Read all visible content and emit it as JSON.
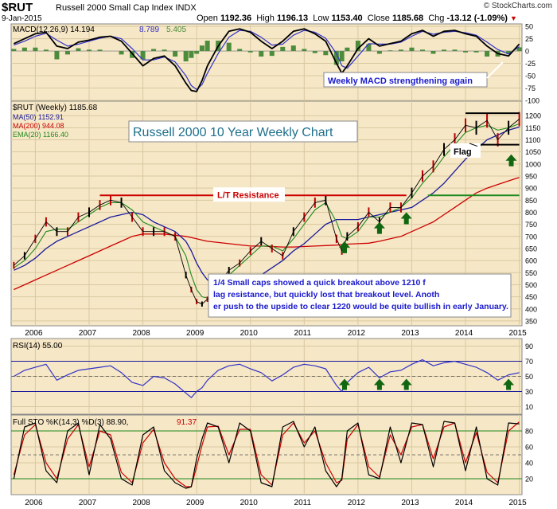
{
  "header": {
    "symbol": "$RUT",
    "description": "Russell 2000 Small Cap Index INDX",
    "date": "9-Jan-2015",
    "copyright": "© StockCharts.com",
    "open_label": "Open",
    "open": "1192.36",
    "high_label": "High",
    "high": "1196.13",
    "low_label": "Low",
    "low": "1153.40",
    "close_label": "Close",
    "close": "1185.68",
    "chg_label": "Chg",
    "chg": "-13.12 (-1.09%)",
    "chg_symbol": "▼"
  },
  "colors": {
    "panel_bg": "#f6e7c6",
    "price": "#000000",
    "ma50": "#1a1a9c",
    "ma200": "#cc0000",
    "ema20": "#1f8a1f",
    "macd_signal": "#3232c8",
    "histogram": "#4c8c3c",
    "resistance": "#cc0000",
    "support": "#1f8a1f",
    "arrow": "#116611",
    "annotation_text": "#1a1acc"
  },
  "chart_data": [
    {
      "type": "line",
      "panel": "MACD",
      "legend": {
        "label": "MACD(12,26,9)",
        "v1": "14.194",
        "v2": "8.789",
        "v3": "5.405"
      },
      "y_ticks": [
        "50",
        "25",
        "0",
        "-25",
        "-50",
        "-75",
        "-100"
      ],
      "ylim": [
        -100,
        55
      ],
      "x": [
        2005.6,
        2005.8,
        2006.0,
        2006.2,
        2006.4,
        2006.6,
        2006.8,
        2007.0,
        2007.2,
        2007.4,
        2007.6,
        2007.8,
        2008.0,
        2008.2,
        2008.4,
        2008.6,
        2008.8,
        2008.9,
        2009.0,
        2009.1,
        2009.2,
        2009.4,
        2009.6,
        2009.8,
        2010.0,
        2010.2,
        2010.4,
        2010.6,
        2010.8,
        2011.0,
        2011.2,
        2011.4,
        2011.6,
        2011.7,
        2011.8,
        2012.0,
        2012.2,
        2012.4,
        2012.6,
        2012.8,
        2013.0,
        2013.2,
        2013.4,
        2013.6,
        2013.8,
        2014.0,
        2014.2,
        2014.4,
        2014.6,
        2014.8,
        2015.0
      ],
      "series": [
        {
          "role": "macd",
          "values": [
            15,
            25,
            35,
            38,
            10,
            5,
            18,
            22,
            28,
            30,
            20,
            -5,
            -30,
            -15,
            -10,
            -30,
            -65,
            -80,
            -82,
            -60,
            -30,
            10,
            40,
            45,
            38,
            20,
            5,
            20,
            40,
            45,
            35,
            20,
            -25,
            -45,
            -30,
            5,
            25,
            10,
            15,
            20,
            35,
            42,
            30,
            40,
            42,
            35,
            30,
            10,
            -5,
            -10,
            14.194
          ]
        },
        {
          "role": "signal",
          "values": [
            12,
            20,
            30,
            36,
            22,
            10,
            14,
            20,
            26,
            30,
            25,
            5,
            -18,
            -18,
            -12,
            -22,
            -50,
            -70,
            -78,
            -68,
            -45,
            -5,
            28,
            42,
            40,
            28,
            12,
            14,
            32,
            42,
            38,
            26,
            -5,
            -30,
            -35,
            -10,
            15,
            14,
            14,
            18,
            30,
            40,
            34,
            38,
            40,
            37,
            32,
            18,
            3,
            -6,
            8.789
          ]
        }
      ],
      "annotations": [
        "Weekly MACD strengthening again"
      ]
    },
    {
      "type": "line",
      "panel": "Price",
      "title": "Russell 2000 10 Year Weekly Chart",
      "legend": [
        {
          "label": "$RUT (Weekly)",
          "value": "1185.68"
        },
        {
          "label": "MA(50)",
          "value": "1152.91"
        },
        {
          "label": "MA(200)",
          "value": "944.08"
        },
        {
          "label": "EMA(20)",
          "value": "1166.40"
        }
      ],
      "y_ticks": [
        "1200",
        "1150",
        "1100",
        "1050",
        "1000",
        "950",
        "900",
        "850",
        "800",
        "750",
        "700",
        "650",
        "600",
        "550",
        "500",
        "450",
        "400",
        "350"
      ],
      "ylim": [
        330,
        1260
      ],
      "x": [
        2005.6,
        2005.8,
        2006.0,
        2006.2,
        2006.4,
        2006.6,
        2006.8,
        2007.0,
        2007.2,
        2007.4,
        2007.6,
        2007.8,
        2008.0,
        2008.2,
        2008.4,
        2008.6,
        2008.8,
        2008.9,
        2009.0,
        2009.1,
        2009.2,
        2009.4,
        2009.6,
        2009.8,
        2010.0,
        2010.2,
        2010.4,
        2010.6,
        2010.8,
        2011.0,
        2011.2,
        2011.4,
        2011.6,
        2011.7,
        2011.8,
        2012.0,
        2012.2,
        2012.4,
        2012.6,
        2012.8,
        2013.0,
        2013.2,
        2013.4,
        2013.6,
        2013.8,
        2014.0,
        2014.2,
        2014.4,
        2014.6,
        2014.8,
        2015.0
      ],
      "series": [
        {
          "name": "$RUT",
          "values": [
            580,
            620,
            690,
            760,
            720,
            720,
            780,
            800,
            830,
            850,
            840,
            780,
            720,
            720,
            720,
            700,
            540,
            480,
            430,
            420,
            440,
            500,
            560,
            590,
            640,
            680,
            650,
            620,
            720,
            780,
            840,
            850,
            690,
            640,
            700,
            740,
            800,
            760,
            820,
            820,
            880,
            950,
            990,
            1060,
            1100,
            1160,
            1150,
            1180,
            1100,
            1150,
            1185.68
          ]
        },
        {
          "name": "MA(50)",
          "values": [
            560,
            580,
            610,
            650,
            680,
            700,
            720,
            740,
            760,
            780,
            790,
            800,
            790,
            760,
            740,
            720,
            680,
            640,
            590,
            550,
            520,
            500,
            480,
            490,
            510,
            540,
            570,
            600,
            640,
            670,
            710,
            750,
            770,
            770,
            770,
            770,
            780,
            790,
            800,
            810,
            820,
            850,
            880,
            920,
            970,
            1020,
            1060,
            1100,
            1120,
            1140,
            1152.91
          ]
        },
        {
          "name": "MA(200)",
          "values": [
            480,
            500,
            520,
            540,
            560,
            580,
            600,
            620,
            640,
            660,
            680,
            700,
            710,
            710,
            710,
            705,
            700,
            695,
            690,
            685,
            680,
            675,
            670,
            665,
            660,
            660,
            658,
            656,
            656,
            658,
            660,
            662,
            664,
            666,
            668,
            670,
            672,
            680,
            690,
            700,
            720,
            740,
            760,
            790,
            820,
            850,
            880,
            900,
            915,
            930,
            944.08
          ]
        },
        {
          "name": "EMA(20)",
          "values": [
            570,
            600,
            650,
            720,
            730,
            730,
            760,
            790,
            820,
            840,
            840,
            810,
            760,
            740,
            720,
            700,
            620,
            540,
            480,
            450,
            445,
            480,
            540,
            580,
            620,
            660,
            660,
            640,
            690,
            750,
            810,
            840,
            760,
            700,
            690,
            720,
            780,
            780,
            800,
            820,
            860,
            920,
            970,
            1030,
            1080,
            1130,
            1150,
            1160,
            1140,
            1150,
            1166.4
          ]
        }
      ],
      "resistance_level": 870,
      "support_level": 870,
      "flag_top": 1210,
      "flag_bottom": 1080,
      "annotations": [
        "L/T Resistance",
        "Flag",
        "1/4 Small caps showed a quick breakout above 1210 flag resistance, but quickly lost that breakout level.  Another push to the upside to clear 1220 would be quite bullish in early January."
      ]
    },
    {
      "type": "line",
      "panel": "RSI",
      "legend": {
        "label": "RSI(14)",
        "value": "55.00"
      },
      "y_ticks": [
        "90",
        "70",
        "50",
        "30",
        "10"
      ],
      "ylim": [
        0,
        100
      ],
      "x": [
        2005.6,
        2005.8,
        2006.0,
        2006.2,
        2006.4,
        2006.6,
        2006.8,
        2007.0,
        2007.2,
        2007.4,
        2007.6,
        2007.8,
        2008.0,
        2008.2,
        2008.4,
        2008.6,
        2008.8,
        2008.9,
        2009.0,
        2009.1,
        2009.2,
        2009.4,
        2009.6,
        2009.8,
        2010.0,
        2010.2,
        2010.4,
        2010.6,
        2010.8,
        2011.0,
        2011.2,
        2011.4,
        2011.6,
        2011.7,
        2011.8,
        2012.0,
        2012.2,
        2012.4,
        2012.6,
        2012.8,
        2013.0,
        2013.2,
        2013.4,
        2013.6,
        2013.8,
        2014.0,
        2014.2,
        2014.4,
        2014.6,
        2014.8,
        2015.0
      ],
      "series": [
        {
          "name": "RSI(14)",
          "values": [
            50,
            58,
            62,
            66,
            45,
            52,
            58,
            60,
            62,
            64,
            55,
            42,
            38,
            50,
            48,
            40,
            28,
            22,
            30,
            35,
            45,
            58,
            64,
            66,
            60,
            55,
            44,
            52,
            62,
            66,
            64,
            60,
            38,
            30,
            42,
            55,
            62,
            48,
            56,
            58,
            66,
            72,
            64,
            68,
            70,
            66,
            62,
            55,
            45,
            52,
            55
          ]
        }
      ]
    },
    {
      "type": "line",
      "panel": "Full STO",
      "legend": {
        "label": "Full STO %K(14,3) %D(3)",
        "k": "88.90",
        "d": "91.37"
      },
      "y_ticks": [
        "80",
        "60",
        "40",
        "20"
      ],
      "ylim": [
        0,
        100
      ],
      "x": [
        2005.6,
        2005.8,
        2006.0,
        2006.2,
        2006.4,
        2006.6,
        2006.8,
        2007.0,
        2007.2,
        2007.4,
        2007.6,
        2007.8,
        2008.0,
        2008.2,
        2008.4,
        2008.6,
        2008.8,
        2008.9,
        2009.0,
        2009.1,
        2009.2,
        2009.4,
        2009.6,
        2009.8,
        2010.0,
        2010.2,
        2010.4,
        2010.6,
        2010.8,
        2011.0,
        2011.2,
        2011.4,
        2011.6,
        2011.7,
        2011.8,
        2012.0,
        2012.2,
        2012.4,
        2012.6,
        2012.8,
        2013.0,
        2013.2,
        2013.4,
        2013.6,
        2013.8,
        2014.0,
        2014.2,
        2014.4,
        2014.6,
        2014.8,
        2015.0
      ],
      "series": [
        {
          "name": "%K",
          "values": [
            20,
            85,
            90,
            30,
            15,
            80,
            90,
            25,
            88,
            70,
            20,
            12,
            75,
            85,
            30,
            15,
            8,
            10,
            45,
            70,
            90,
            85,
            40,
            90,
            80,
            15,
            10,
            85,
            92,
            60,
            85,
            30,
            10,
            20,
            80,
            90,
            25,
            20,
            85,
            40,
            90,
            88,
            35,
            92,
            90,
            30,
            85,
            20,
            12,
            90,
            88.9
          ]
        },
        {
          "name": "%D",
          "values": [
            25,
            75,
            88,
            40,
            20,
            70,
            88,
            35,
            80,
            75,
            28,
            15,
            65,
            82,
            40,
            20,
            10,
            10,
            35,
            62,
            85,
            86,
            50,
            82,
            82,
            25,
            12,
            75,
            90,
            65,
            80,
            40,
            15,
            18,
            70,
            88,
            35,
            22,
            75,
            50,
            85,
            88,
            45,
            85,
            90,
            40,
            78,
            28,
            15,
            80,
            91.37
          ]
        }
      ]
    }
  ],
  "x_axis": {
    "ticks": [
      "2006",
      "2007",
      "2008",
      "2009",
      "2010",
      "2011",
      "2012",
      "2013",
      "2014",
      "2015"
    ]
  }
}
